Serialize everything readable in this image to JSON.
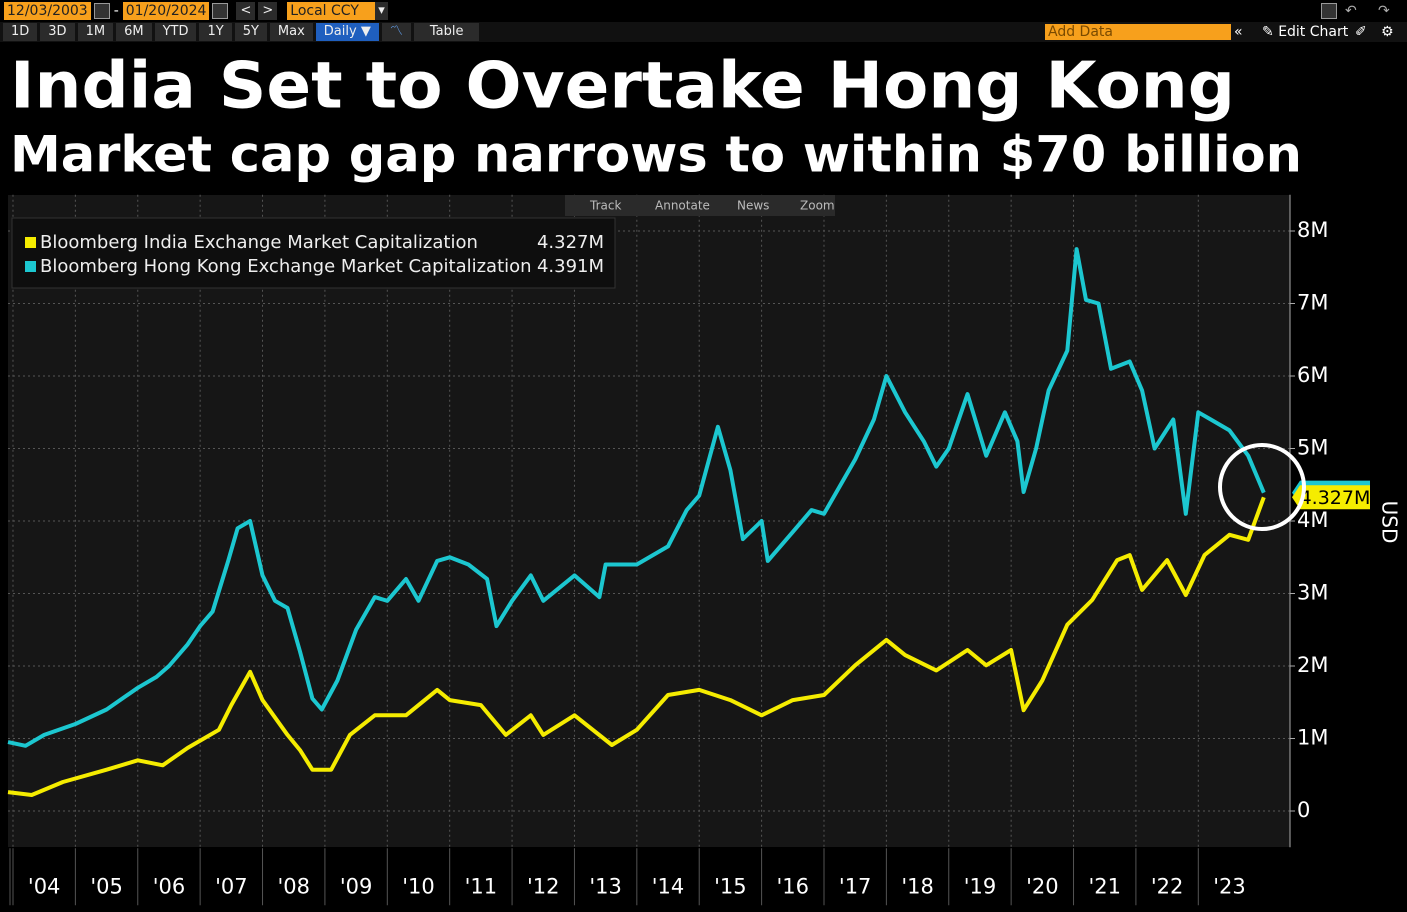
{
  "toolbar": {
    "start_date": "12/03/2003",
    "end_date": "01/20/2024",
    "currency": "Local CCY",
    "ranges": [
      "1D",
      "3D",
      "1M",
      "6M",
      "YTD",
      "1Y",
      "5Y",
      "Max"
    ],
    "frequency": "Daily ▼",
    "table": "Table",
    "add_data": "Add Data",
    "edit_chart": "Edit Chart"
  },
  "chart_data": {
    "type": "line",
    "title": "India Set to Overtake Hong Kong",
    "subtitle": "Market cap gap narrows to within $70 billion",
    "chart_tools": [
      "Track",
      "Annotate",
      "News",
      "Zoom"
    ],
    "y_label": "USD",
    "xlim": [
      2003.92,
      2024.47
    ],
    "ylim": [
      -0.5,
      8.5
    ],
    "xticks": [
      {
        "value": 2004,
        "label": "'04"
      },
      {
        "value": 2005,
        "label": "'05"
      },
      {
        "value": 2006,
        "label": "'06"
      },
      {
        "value": 2007,
        "label": "'07"
      },
      {
        "value": 2008,
        "label": "'08"
      },
      {
        "value": 2009,
        "label": "'09"
      },
      {
        "value": 2010,
        "label": "'10"
      },
      {
        "value": 2011,
        "label": "'11"
      },
      {
        "value": 2012,
        "label": "'12"
      },
      {
        "value": 2013,
        "label": "'13"
      },
      {
        "value": 2014,
        "label": "'14"
      },
      {
        "value": 2015,
        "label": "'15"
      },
      {
        "value": 2016,
        "label": "'16"
      },
      {
        "value": 2017,
        "label": "'17"
      },
      {
        "value": 2018,
        "label": "'18"
      },
      {
        "value": 2019,
        "label": "'19"
      },
      {
        "value": 2020,
        "label": "'20"
      },
      {
        "value": 2021,
        "label": "'21"
      },
      {
        "value": 2022,
        "label": "'22"
      },
      {
        "value": 2023,
        "label": "'23"
      }
    ],
    "yticks": [
      0,
      {
        "value": 1,
        "label": "1M"
      },
      {
        "value": 2,
        "label": "2M"
      },
      {
        "value": 3,
        "label": "3M"
      },
      {
        "value": 4,
        "label": "4M"
      },
      {
        "value": 5,
        "label": "5M"
      },
      {
        "value": 6,
        "label": "6M"
      },
      {
        "value": 7,
        "label": "7M"
      },
      {
        "value": 8,
        "label": "8M"
      }
    ],
    "grid": true,
    "legend": "top-left",
    "series": [
      {
        "name": "Bloomberg India Exchange Market Capitalization",
        "color": "#f5ec00",
        "legend_value": "4.327M",
        "x": [
          2003.92,
          2004.3,
          2004.8,
          2005.5,
          2006.0,
          2006.4,
          2006.8,
          2007.3,
          2007.5,
          2007.8,
          2008.0,
          2008.4,
          2008.6,
          2008.8,
          2009.1,
          2009.4,
          2009.8,
          2010.3,
          2010.8,
          2011.0,
          2011.5,
          2011.9,
          2012.3,
          2012.5,
          2013.0,
          2013.6,
          2014.0,
          2014.5,
          2015.0,
          2015.5,
          2016.0,
          2016.5,
          2017.0,
          2017.5,
          2018.0,
          2018.3,
          2018.8,
          2019.3,
          2019.6,
          2020.0,
          2020.2,
          2020.5,
          2020.9,
          2021.3,
          2021.7,
          2021.9,
          2022.1,
          2022.5,
          2022.8,
          2023.1,
          2023.5,
          2023.8,
          2024.05
        ],
        "values": [
          0.26,
          0.22,
          0.4,
          0.57,
          0.7,
          0.63,
          0.87,
          1.12,
          1.46,
          1.92,
          1.53,
          1.05,
          0.84,
          0.57,
          0.57,
          1.05,
          1.32,
          1.32,
          1.67,
          1.53,
          1.46,
          1.05,
          1.32,
          1.05,
          1.32,
          0.91,
          1.12,
          1.6,
          1.67,
          1.53,
          1.32,
          1.53,
          1.6,
          2.01,
          2.36,
          2.15,
          1.94,
          2.22,
          2.01,
          2.22,
          1.39,
          1.8,
          2.57,
          2.91,
          3.46,
          3.53,
          3.05,
          3.46,
          2.98,
          3.53,
          3.81,
          3.74,
          4.327
        ]
      },
      {
        "name": "Bloomberg Hong Kong Exchange Market Capitalization",
        "color": "#1cc7d0",
        "legend_value": "4.391M",
        "x": [
          2003.92,
          2004.2,
          2004.5,
          2005.0,
          2005.5,
          2006.0,
          2006.3,
          2006.5,
          2006.8,
          2007.0,
          2007.2,
          2007.45,
          2007.6,
          2007.8,
          2008.0,
          2008.2,
          2008.4,
          2008.6,
          2008.8,
          2008.95,
          2009.2,
          2009.5,
          2009.8,
          2010.0,
          2010.3,
          2010.5,
          2010.8,
          2011.0,
          2011.3,
          2011.6,
          2011.75,
          2012.0,
          2012.3,
          2012.5,
          2013.0,
          2013.4,
          2013.5,
          2014.0,
          2014.5,
          2014.8,
          2015.0,
          2015.3,
          2015.5,
          2015.7,
          2016.0,
          2016.1,
          2016.5,
          2016.8,
          2017.0,
          2017.5,
          2017.8,
          2018.0,
          2018.3,
          2018.6,
          2018.8,
          2019.0,
          2019.3,
          2019.6,
          2019.9,
          2020.1,
          2020.2,
          2020.4,
          2020.6,
          2020.9,
          2021.05,
          2021.2,
          2021.4,
          2021.6,
          2021.9,
          2022.1,
          2022.3,
          2022.6,
          2022.8,
          2023.0,
          2023.2,
          2023.5,
          2023.8,
          2024.05
        ],
        "values": [
          0.95,
          0.9,
          1.05,
          1.2,
          1.4,
          1.7,
          1.85,
          2.0,
          2.3,
          2.55,
          2.75,
          3.45,
          3.9,
          4.0,
          3.25,
          2.9,
          2.8,
          2.2,
          1.55,
          1.4,
          1.8,
          2.5,
          2.95,
          2.9,
          3.2,
          2.9,
          3.45,
          3.5,
          3.4,
          3.2,
          2.55,
          2.9,
          3.25,
          2.9,
          3.25,
          2.95,
          3.4,
          3.4,
          3.65,
          4.15,
          4.35,
          5.3,
          4.7,
          3.75,
          4.0,
          3.45,
          3.85,
          4.15,
          4.1,
          4.85,
          5.4,
          6.0,
          5.5,
          5.1,
          4.75,
          5.0,
          5.75,
          4.9,
          5.5,
          5.1,
          4.4,
          5.0,
          5.8,
          6.35,
          7.75,
          7.05,
          7.0,
          6.1,
          6.2,
          5.8,
          5.0,
          5.4,
          4.1,
          5.5,
          5.4,
          5.25,
          4.9,
          4.391
        ]
      }
    ]
  }
}
